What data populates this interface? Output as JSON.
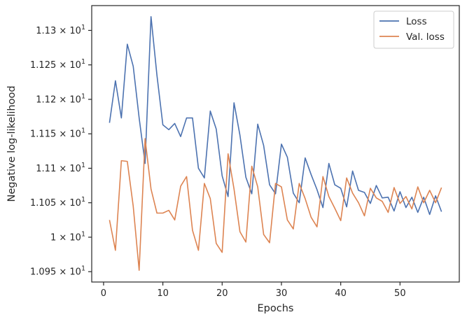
{
  "chart_data": {
    "type": "line",
    "xlabel": "Epochs",
    "ylabel": "Negative log-likelihood",
    "xlim": [
      -2,
      60
    ],
    "ylim": [
      10.935,
      11.336
    ],
    "grid": false,
    "legend_position": "top-right",
    "x_ticks": [
      0,
      10,
      20,
      30,
      40,
      50
    ],
    "y_ticks": [
      {
        "value": 10.95,
        "mantissa": "1.095",
        "times": " × ",
        "base": "10",
        "exp": "1"
      },
      {
        "value": 11.0,
        "mantissa": "1",
        "times": " × ",
        "base": "10",
        "exp": "1"
      },
      {
        "value": 11.05,
        "mantissa": "1.105",
        "times": " × ",
        "base": "10",
        "exp": "1"
      },
      {
        "value": 11.1,
        "mantissa": "1.11",
        "times": " × ",
        "base": "10",
        "exp": "1"
      },
      {
        "value": 11.15,
        "mantissa": "1.115",
        "times": " × ",
        "base": "10",
        "exp": "1"
      },
      {
        "value": 11.2,
        "mantissa": "1.12",
        "times": " × ",
        "base": "10",
        "exp": "1"
      },
      {
        "value": 11.25,
        "mantissa": "1.125",
        "times": " × ",
        "base": "10",
        "exp": "1"
      },
      {
        "value": 11.3,
        "mantissa": "1.13",
        "times": " × ",
        "base": "10",
        "exp": "1"
      }
    ],
    "x": [
      1,
      2,
      3,
      4,
      5,
      6,
      7,
      8,
      9,
      10,
      11,
      12,
      13,
      14,
      15,
      16,
      17,
      18,
      19,
      20,
      21,
      22,
      23,
      24,
      25,
      26,
      27,
      28,
      29,
      30,
      31,
      32,
      33,
      34,
      35,
      36,
      37,
      38,
      39,
      40,
      41,
      42,
      43,
      44,
      45,
      46,
      47,
      48,
      49,
      50,
      51,
      52,
      53,
      54,
      55,
      56,
      57
    ],
    "series": [
      {
        "name": "Loss",
        "color": "#4c72b0",
        "values": [
          11.166,
          11.227,
          11.173,
          11.28,
          11.248,
          11.173,
          11.107,
          11.32,
          11.235,
          11.163,
          11.156,
          11.165,
          11.146,
          11.173,
          11.173,
          11.1,
          11.086,
          11.183,
          11.157,
          11.089,
          11.059,
          11.195,
          11.148,
          11.087,
          11.063,
          11.164,
          11.133,
          11.076,
          11.063,
          11.135,
          11.116,
          11.064,
          11.05,
          11.115,
          11.091,
          11.069,
          11.043,
          11.107,
          11.076,
          11.071,
          11.044,
          11.096,
          11.068,
          11.065,
          11.049,
          11.075,
          11.057,
          11.058,
          11.038,
          11.066,
          11.043,
          11.058,
          11.036,
          11.058,
          11.033,
          11.06,
          11.037
        ]
      },
      {
        "name": "Val. loss",
        "color": "#dd8452",
        "values": [
          11.025,
          10.981,
          11.111,
          11.11,
          11.045,
          10.952,
          11.143,
          11.07,
          11.035,
          11.035,
          11.039,
          11.025,
          11.074,
          11.088,
          11.01,
          10.981,
          11.078,
          11.056,
          10.991,
          10.978,
          11.121,
          11.07,
          11.008,
          10.993,
          11.103,
          11.073,
          11.004,
          10.992,
          11.078,
          11.073,
          11.025,
          11.012,
          11.078,
          11.056,
          11.029,
          11.015,
          11.088,
          11.059,
          11.042,
          11.024,
          11.086,
          11.064,
          11.05,
          11.031,
          11.071,
          11.057,
          11.052,
          11.036,
          11.072,
          11.049,
          11.059,
          11.041,
          11.073,
          11.05,
          11.068,
          11.05,
          11.072
        ]
      }
    ]
  }
}
